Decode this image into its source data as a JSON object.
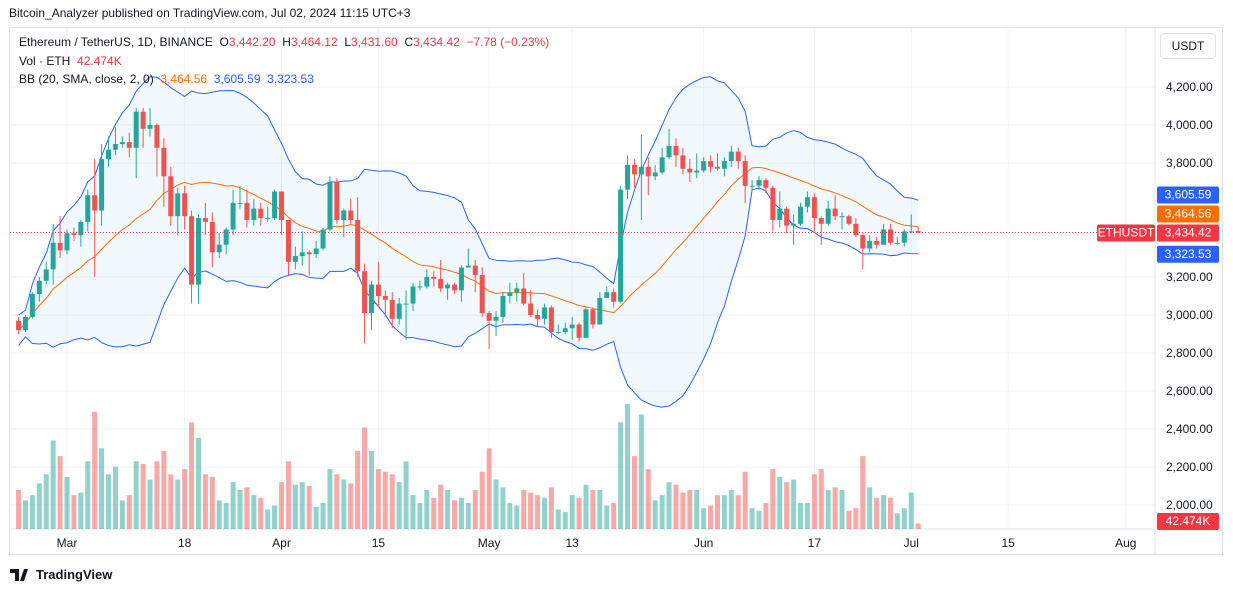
{
  "header": {
    "published": "Bitcoin_Analyzer published on TradingView.com, Jul 02, 2024 11:15 UTC+3"
  },
  "legend": {
    "symbol": "Ethereum / TetherUS, 1D, BINANCE",
    "o_label": "O",
    "o": "3,442.20",
    "h_label": "H",
    "h": "3,464.12",
    "l_label": "L",
    "l": "3,431.60",
    "c_label": "C",
    "c": "3,434.42",
    "change": "−7.78 (−0.23%)",
    "vol_label": "Vol · ETH",
    "vol": "42.474K",
    "bb_label": "BB (20, SMA, close, 2, 0)",
    "bb_basis": "3,464.56",
    "bb_upper": "3,605.59",
    "bb_lower": "3,323.53"
  },
  "price_axis": {
    "unit": "USDT",
    "badges": {
      "upper": "3,605.59",
      "basis": "3,464.56",
      "last": "3,434.42",
      "lower": "3,323.53",
      "symbol": "ETHUSDT",
      "volume": "42.474K"
    }
  },
  "footer": {
    "logo_text": "TradingView"
  },
  "colors": {
    "up": "#26a69a",
    "down": "#ef5350",
    "bb_band": "#2962ff",
    "bb_basis": "#ff6d00",
    "last": "#f23645"
  },
  "chart_data": {
    "type": "candlestick",
    "symbol": "ETHUSDT",
    "interval": "1D",
    "ylim": [
      2000,
      4300
    ],
    "y_ticks": [
      {
        "v": 4200,
        "label": "4,200.00"
      },
      {
        "v": 4000,
        "label": "4,000.00"
      },
      {
        "v": 3800,
        "label": "3,800.00"
      },
      {
        "v": 3200,
        "label": "3,200.00"
      },
      {
        "v": 3000,
        "label": "3,000.00"
      },
      {
        "v": 2800,
        "label": "2,800.00"
      },
      {
        "v": 2600,
        "label": "2,600.00"
      },
      {
        "v": 2400,
        "label": "2,400.00"
      },
      {
        "v": 2200,
        "label": "2,200.00"
      },
      {
        "v": 2000,
        "label": "2,000.00"
      }
    ],
    "x_ticks": [
      {
        "d": "2024-03-01",
        "label": "Mar"
      },
      {
        "d": "2024-03-18",
        "label": "18"
      },
      {
        "d": "2024-04-01",
        "label": "Apr"
      },
      {
        "d": "2024-04-15",
        "label": "15"
      },
      {
        "d": "2024-05-01",
        "label": "May"
      },
      {
        "d": "2024-05-13",
        "label": "13"
      },
      {
        "d": "2024-06-01",
        "label": "Jun"
      },
      {
        "d": "2024-06-17",
        "label": "17"
      },
      {
        "d": "2024-07-01",
        "label": "Jul"
      },
      {
        "d": "2024-07-15",
        "label": "15"
      },
      {
        "d": "2024-08-01",
        "label": "Aug"
      }
    ],
    "grid": true,
    "indicator": {
      "name": "BB",
      "length": 20,
      "mult": 2
    },
    "columns": [
      "date",
      "open",
      "high",
      "low",
      "close",
      "volume_k"
    ],
    "candles": [
      [
        "2024-02-23",
        2970,
        2990,
        2900,
        2920,
        300
      ],
      [
        "2024-02-24",
        2920,
        3000,
        2910,
        2990,
        220
      ],
      [
        "2024-02-25",
        2990,
        3120,
        2980,
        3110,
        260
      ],
      [
        "2024-02-26",
        3110,
        3200,
        3070,
        3180,
        350
      ],
      [
        "2024-02-27",
        3180,
        3280,
        3160,
        3240,
        420
      ],
      [
        "2024-02-28",
        3240,
        3480,
        3160,
        3380,
        680
      ],
      [
        "2024-02-29",
        3380,
        3520,
        3300,
        3340,
        560
      ],
      [
        "2024-03-01",
        3340,
        3450,
        3320,
        3430,
        400
      ],
      [
        "2024-03-02",
        3430,
        3460,
        3390,
        3420,
        260
      ],
      [
        "2024-03-03",
        3420,
        3500,
        3360,
        3490,
        280
      ],
      [
        "2024-03-04",
        3490,
        3660,
        3440,
        3630,
        520
      ],
      [
        "2024-03-05",
        3630,
        3820,
        3200,
        3550,
        900
      ],
      [
        "2024-03-06",
        3550,
        3900,
        3470,
        3820,
        620
      ],
      [
        "2024-03-07",
        3820,
        3940,
        3780,
        3870,
        420
      ],
      [
        "2024-03-08",
        3870,
        3990,
        3840,
        3900,
        480
      ],
      [
        "2024-03-09",
        3900,
        3940,
        3880,
        3910,
        220
      ],
      [
        "2024-03-10",
        3910,
        3960,
        3830,
        3880,
        260
      ],
      [
        "2024-03-11",
        3880,
        4090,
        3720,
        4070,
        520
      ],
      [
        "2024-03-12",
        4070,
        4090,
        3880,
        3980,
        500
      ],
      [
        "2024-03-13",
        3980,
        4090,
        3940,
        4000,
        380
      ],
      [
        "2024-03-14",
        4000,
        4010,
        3730,
        3880,
        520
      ],
      [
        "2024-03-15",
        3880,
        3930,
        3570,
        3730,
        600
      ],
      [
        "2024-03-16",
        3730,
        3780,
        3470,
        3520,
        420
      ],
      [
        "2024-03-17",
        3520,
        3670,
        3420,
        3640,
        380
      ],
      [
        "2024-03-18",
        3640,
        3680,
        3450,
        3520,
        460
      ],
      [
        "2024-03-19",
        3520,
        3550,
        3060,
        3160,
        820
      ],
      [
        "2024-03-20",
        3160,
        3530,
        3060,
        3510,
        700
      ],
      [
        "2024-03-21",
        3510,
        3590,
        3420,
        3490,
        420
      ],
      [
        "2024-03-22",
        3490,
        3540,
        3250,
        3330,
        400
      ],
      [
        "2024-03-23",
        3330,
        3430,
        3300,
        3370,
        220
      ],
      [
        "2024-03-24",
        3370,
        3460,
        3320,
        3450,
        200
      ],
      [
        "2024-03-25",
        3450,
        3660,
        3420,
        3590,
        360
      ],
      [
        "2024-03-26",
        3590,
        3680,
        3560,
        3590,
        300
      ],
      [
        "2024-03-27",
        3590,
        3660,
        3460,
        3500,
        320
      ],
      [
        "2024-03-28",
        3500,
        3610,
        3470,
        3560,
        260
      ],
      [
        "2024-03-29",
        3560,
        3590,
        3470,
        3510,
        240
      ],
      [
        "2024-03-30",
        3510,
        3570,
        3490,
        3510,
        150
      ],
      [
        "2024-03-31",
        3510,
        3660,
        3500,
        3650,
        180
      ],
      [
        "2024-04-01",
        3650,
        3650,
        3420,
        3500,
        360
      ],
      [
        "2024-04-02",
        3500,
        3500,
        3210,
        3280,
        520
      ],
      [
        "2024-04-03",
        3280,
        3360,
        3240,
        3310,
        340
      ],
      [
        "2024-04-04",
        3310,
        3440,
        3260,
        3330,
        360
      ],
      [
        "2024-04-05",
        3330,
        3340,
        3210,
        3320,
        330
      ],
      [
        "2024-04-06",
        3320,
        3390,
        3300,
        3350,
        170
      ],
      [
        "2024-04-07",
        3350,
        3460,
        3340,
        3450,
        200
      ],
      [
        "2024-04-08",
        3450,
        3730,
        3440,
        3700,
        460
      ],
      [
        "2024-04-09",
        3700,
        3720,
        3480,
        3500,
        420
      ],
      [
        "2024-04-10",
        3500,
        3560,
        3410,
        3550,
        380
      ],
      [
        "2024-04-11",
        3550,
        3610,
        3480,
        3500,
        350
      ],
      [
        "2024-04-12",
        3500,
        3620,
        3200,
        3230,
        600
      ],
      [
        "2024-04-13",
        3230,
        3270,
        2850,
        3010,
        780
      ],
      [
        "2024-04-14",
        3010,
        3180,
        2920,
        3160,
        600
      ],
      [
        "2024-04-15",
        3160,
        3280,
        3040,
        3100,
        460
      ],
      [
        "2024-04-16",
        3100,
        3130,
        2990,
        3080,
        440
      ],
      [
        "2024-04-17",
        3080,
        3120,
        2930,
        2980,
        420
      ],
      [
        "2024-04-18",
        2980,
        3090,
        2950,
        3060,
        360
      ],
      [
        "2024-04-19",
        3060,
        3130,
        2870,
        3060,
        520
      ],
      [
        "2024-04-20",
        3060,
        3170,
        3020,
        3150,
        260
      ],
      [
        "2024-04-21",
        3150,
        3180,
        3130,
        3150,
        200
      ],
      [
        "2024-04-22",
        3150,
        3240,
        3140,
        3200,
        300
      ],
      [
        "2024-04-23",
        3200,
        3230,
        3150,
        3190,
        240
      ],
      [
        "2024-04-24",
        3190,
        3290,
        3120,
        3140,
        340
      ],
      [
        "2024-04-25",
        3140,
        3170,
        3080,
        3160,
        300
      ],
      [
        "2024-04-26",
        3160,
        3170,
        3110,
        3130,
        220
      ],
      [
        "2024-04-27",
        3130,
        3260,
        3070,
        3250,
        240
      ],
      [
        "2024-04-28",
        3250,
        3350,
        3250,
        3260,
        200
      ],
      [
        "2024-04-29",
        3260,
        3290,
        3120,
        3210,
        300
      ],
      [
        "2024-04-30",
        3210,
        3250,
        2990,
        3010,
        440
      ],
      [
        "2024-05-01",
        3010,
        3020,
        2820,
        2970,
        620
      ],
      [
        "2024-05-02",
        2970,
        3020,
        2890,
        2990,
        380
      ],
      [
        "2024-05-03",
        2990,
        3120,
        2960,
        3100,
        320
      ],
      [
        "2024-05-04",
        3100,
        3170,
        3060,
        3120,
        200
      ],
      [
        "2024-05-05",
        3120,
        3170,
        3070,
        3140,
        180
      ],
      [
        "2024-05-06",
        3140,
        3220,
        3050,
        3060,
        300
      ],
      [
        "2024-05-07",
        3060,
        3130,
        2990,
        3000,
        280
      ],
      [
        "2024-05-08",
        3000,
        3030,
        2940,
        2980,
        260
      ],
      [
        "2024-05-09",
        2980,
        3060,
        2950,
        3040,
        240
      ],
      [
        "2024-05-10",
        3040,
        3050,
        2880,
        2910,
        320
      ],
      [
        "2024-05-11",
        2910,
        2950,
        2900,
        2910,
        150
      ],
      [
        "2024-05-12",
        2910,
        2960,
        2900,
        2930,
        130
      ],
      [
        "2024-05-13",
        2930,
        2990,
        2870,
        2950,
        260
      ],
      [
        "2024-05-14",
        2950,
        2960,
        2860,
        2880,
        240
      ],
      [
        "2024-05-15",
        2880,
        3040,
        2880,
        3030,
        340
      ],
      [
        "2024-05-16",
        3030,
        3040,
        2930,
        2950,
        300
      ],
      [
        "2024-05-17",
        2950,
        3120,
        2950,
        3090,
        300
      ],
      [
        "2024-05-18",
        3090,
        3150,
        3090,
        3120,
        180
      ],
      [
        "2024-05-19",
        3120,
        3140,
        3040,
        3070,
        200
      ],
      [
        "2024-05-20",
        3070,
        3680,
        3060,
        3660,
        820
      ],
      [
        "2024-05-21",
        3660,
        3840,
        3610,
        3790,
        960
      ],
      [
        "2024-05-22",
        3790,
        3820,
        3670,
        3740,
        560
      ],
      [
        "2024-05-23",
        3740,
        3950,
        3500,
        3780,
        880
      ],
      [
        "2024-05-24",
        3780,
        3830,
        3630,
        3730,
        460
      ],
      [
        "2024-05-25",
        3730,
        3790,
        3710,
        3750,
        220
      ],
      [
        "2024-05-26",
        3750,
        3880,
        3740,
        3830,
        260
      ],
      [
        "2024-05-27",
        3830,
        3980,
        3820,
        3890,
        360
      ],
      [
        "2024-05-28",
        3890,
        3930,
        3780,
        3840,
        340
      ],
      [
        "2024-05-29",
        3840,
        3880,
        3740,
        3770,
        280
      ],
      [
        "2024-05-30",
        3770,
        3820,
        3700,
        3750,
        300
      ],
      [
        "2024-05-31",
        3750,
        3850,
        3720,
        3760,
        300
      ],
      [
        "2024-06-01",
        3760,
        3830,
        3750,
        3810,
        160
      ],
      [
        "2024-06-02",
        3810,
        3840,
        3750,
        3780,
        180
      ],
      [
        "2024-06-03",
        3780,
        3850,
        3760,
        3770,
        260
      ],
      [
        "2024-06-04",
        3770,
        3830,
        3730,
        3810,
        260
      ],
      [
        "2024-06-05",
        3810,
        3890,
        3780,
        3860,
        300
      ],
      [
        "2024-06-06",
        3860,
        3880,
        3770,
        3810,
        260
      ],
      [
        "2024-06-07",
        3810,
        3840,
        3590,
        3680,
        440
      ],
      [
        "2024-06-08",
        3680,
        3710,
        3660,
        3680,
        160
      ],
      [
        "2024-06-09",
        3680,
        3730,
        3660,
        3710,
        140
      ],
      [
        "2024-06-10",
        3710,
        3720,
        3640,
        3670,
        200
      ],
      [
        "2024-06-11",
        3670,
        3680,
        3440,
        3500,
        460
      ],
      [
        "2024-06-12",
        3500,
        3650,
        3460,
        3560,
        400
      ],
      [
        "2024-06-13",
        3560,
        3570,
        3430,
        3470,
        360
      ],
      [
        "2024-06-14",
        3470,
        3530,
        3370,
        3480,
        380
      ],
      [
        "2024-06-15",
        3480,
        3590,
        3470,
        3570,
        200
      ],
      [
        "2024-06-16",
        3570,
        3650,
        3540,
        3620,
        200
      ],
      [
        "2024-06-17",
        3620,
        3640,
        3440,
        3510,
        420
      ],
      [
        "2024-06-18",
        3510,
        3520,
        3370,
        3480,
        460
      ],
      [
        "2024-06-19",
        3480,
        3600,
        3470,
        3560,
        300
      ],
      [
        "2024-06-20",
        3560,
        3630,
        3500,
        3520,
        320
      ],
      [
        "2024-06-21",
        3520,
        3540,
        3450,
        3520,
        300
      ],
      [
        "2024-06-22",
        3520,
        3530,
        3470,
        3480,
        140
      ],
      [
        "2024-06-23",
        3480,
        3510,
        3410,
        3420,
        160
      ],
      [
        "2024-06-24",
        3420,
        3430,
        3240,
        3350,
        560
      ],
      [
        "2024-06-25",
        3350,
        3420,
        3330,
        3390,
        320
      ],
      [
        "2024-06-26",
        3390,
        3410,
        3350,
        3370,
        240
      ],
      [
        "2024-06-27",
        3370,
        3480,
        3370,
        3450,
        260
      ],
      [
        "2024-06-28",
        3450,
        3480,
        3370,
        3380,
        240
      ],
      [
        "2024-06-29",
        3380,
        3410,
        3370,
        3380,
        120
      ],
      [
        "2024-06-30",
        3380,
        3450,
        3360,
        3440,
        160
      ],
      [
        "2024-07-01",
        3440,
        3530,
        3430,
        3440,
        280
      ],
      [
        "2024-07-02",
        3442.2,
        3464.12,
        3431.6,
        3434.42,
        42.474
      ]
    ]
  }
}
